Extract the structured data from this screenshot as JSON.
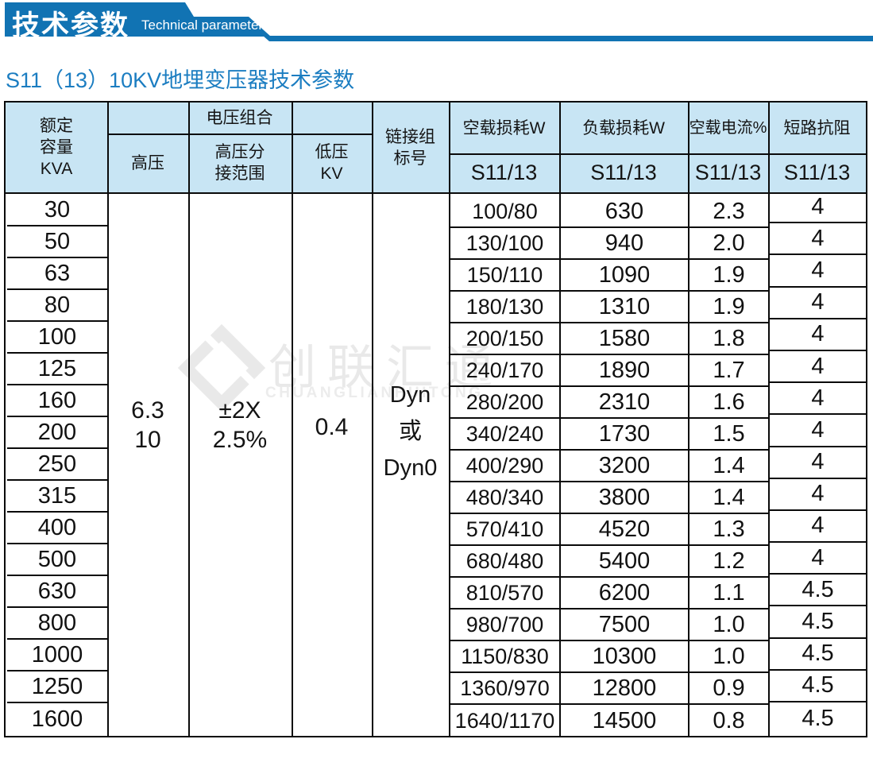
{
  "banner": {
    "title_cn": "技术参数",
    "title_en": "Technical parameter",
    "color": "#1173b3"
  },
  "subtitle": "S11（13）10KV地埋变压器技术参数",
  "watermark": {
    "logo": "diamond-logo",
    "name_cn": "创联汇通",
    "name_en": "CHUANGLIANHUITONG"
  },
  "table": {
    "header_bg": "#c8e5f4",
    "headers": {
      "rated_capacity": "额定\n容量\nKVA",
      "voltage_combo": "电压组合",
      "hv": "高压",
      "hv_tap": "高压分\n接范围",
      "lv": "低压\nKV",
      "vector_group": "链接组\n标号",
      "no_load_loss": "空载损耗W",
      "load_loss": "负载损耗W",
      "no_load_current": "空载电流%",
      "impedance": "短路抗阻",
      "sub": "S11/13"
    },
    "merged": {
      "hv": "6.3\n10",
      "hv_tap": "±2X\n2.5%",
      "lv": "0.4",
      "vector_group": "Dyn\n或\nDyn0"
    },
    "rows": [
      {
        "kva": "30",
        "no_load_loss": "100/80",
        "load_loss": "630",
        "no_load_current": "2.3",
        "impedance": "4"
      },
      {
        "kva": "50",
        "no_load_loss": "130/100",
        "load_loss": "940",
        "no_load_current": "2.0",
        "impedance": "4"
      },
      {
        "kva": "63",
        "no_load_loss": "150/110",
        "load_loss": "1090",
        "no_load_current": "1.9",
        "impedance": "4"
      },
      {
        "kva": "80",
        "no_load_loss": "180/130",
        "load_loss": "1310",
        "no_load_current": "1.9",
        "impedance": "4"
      },
      {
        "kva": "100",
        "no_load_loss": "200/150",
        "load_loss": "1580",
        "no_load_current": "1.8",
        "impedance": "4"
      },
      {
        "kva": "125",
        "no_load_loss": "240/170",
        "load_loss": "1890",
        "no_load_current": "1.7",
        "impedance": "4"
      },
      {
        "kva": "160",
        "no_load_loss": "280/200",
        "load_loss": "2310",
        "no_load_current": "1.6",
        "impedance": "4"
      },
      {
        "kva": "200",
        "no_load_loss": "340/240",
        "load_loss": "1730",
        "no_load_current": "1.5",
        "impedance": "4"
      },
      {
        "kva": "250",
        "no_load_loss": "400/290",
        "load_loss": "3200",
        "no_load_current": "1.4",
        "impedance": "4"
      },
      {
        "kva": "315",
        "no_load_loss": "480/340",
        "load_loss": "3800",
        "no_load_current": "1.4",
        "impedance": "4"
      },
      {
        "kva": "400",
        "no_load_loss": "570/410",
        "load_loss": "4520",
        "no_load_current": "1.3",
        "impedance": "4"
      },
      {
        "kva": "500",
        "no_load_loss": "680/480",
        "load_loss": "5400",
        "no_load_current": "1.2",
        "impedance": "4"
      },
      {
        "kva": "630",
        "no_load_loss": "810/570",
        "load_loss": "6200",
        "no_load_current": "1.1",
        "impedance": "4.5"
      },
      {
        "kva": "800",
        "no_load_loss": "980/700",
        "load_loss": "7500",
        "no_load_current": "1.0",
        "impedance": "4.5"
      },
      {
        "kva": "1000",
        "no_load_loss": "1150/830",
        "load_loss": "10300",
        "no_load_current": "1.0",
        "impedance": "4.5"
      },
      {
        "kva": "1250",
        "no_load_loss": "1360/970",
        "load_loss": "12800",
        "no_load_current": "0.9",
        "impedance": "4.5"
      },
      {
        "kva": "1600",
        "no_load_loss": "1640/1170",
        "load_loss": "14500",
        "no_load_current": "0.8",
        "impedance": "4.5"
      }
    ]
  }
}
